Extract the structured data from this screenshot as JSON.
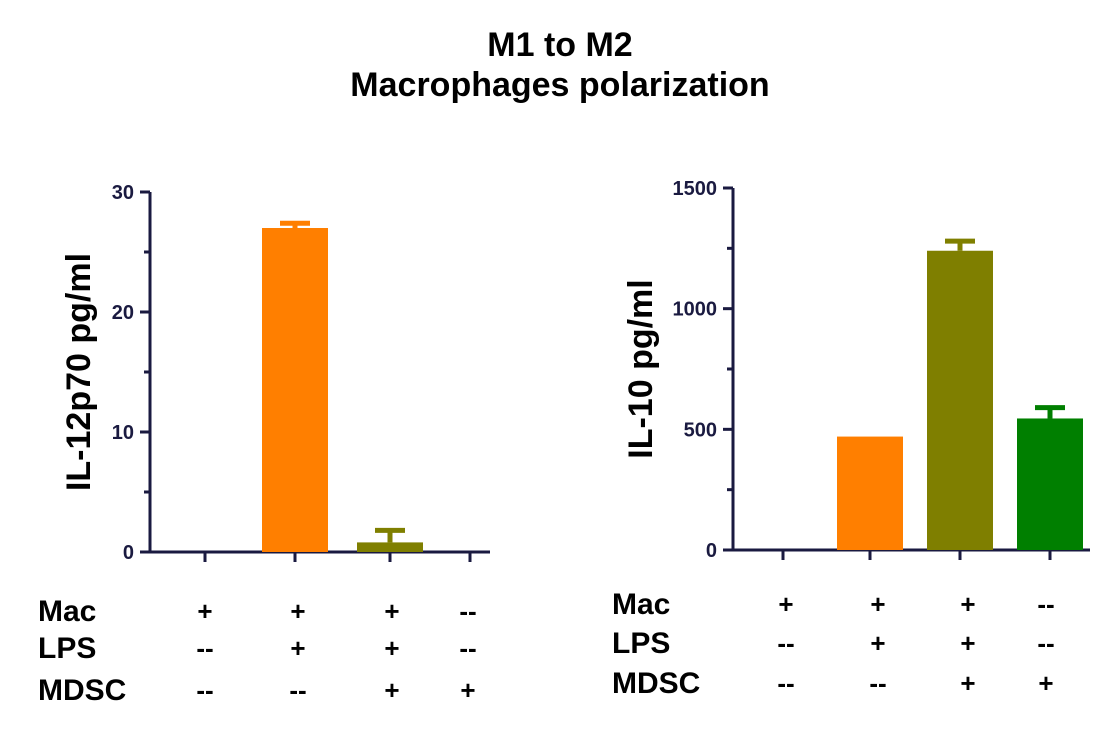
{
  "title": {
    "line1": "M1 to M2",
    "line2": "Macrophages polarization"
  },
  "colors": {
    "axis": "#1a1a40",
    "orange": "#ff7f00",
    "olive": "#7f7f00",
    "green": "#007f00"
  },
  "chart_data": [
    {
      "type": "bar",
      "ylabel": "IL-12p70 pg/ml",
      "ylim": [
        0,
        30
      ],
      "yticks": [
        0,
        10,
        20,
        30
      ],
      "categories": [
        "Mac+ LPS-- MDSC--",
        "Mac+ LPS+ MDSC--",
        "Mac+ LPS+ MDSC+",
        "Mac-- LPS-- MDSC+"
      ],
      "values": [
        0,
        27,
        0.8,
        0
      ],
      "errors": [
        0,
        0.4,
        1.0,
        0
      ],
      "bar_colors": [
        "#ff7f00",
        "#ff7f00",
        "#7f7f00",
        "#007f00"
      ],
      "conditions": {
        "labels": [
          "Mac",
          "LPS",
          "MDSC"
        ],
        "rows": [
          [
            "+",
            "+",
            "+",
            "--"
          ],
          [
            "--",
            "+",
            "+",
            "--"
          ],
          [
            "--",
            "--",
            "+",
            "+"
          ]
        ]
      }
    },
    {
      "type": "bar",
      "ylabel": "IL-10 pg/ml",
      "ylim": [
        0,
        1500
      ],
      "yticks": [
        0,
        500,
        1000,
        1500
      ],
      "categories": [
        "Mac+ LPS-- MDSC--",
        "Mac+ LPS+ MDSC--",
        "Mac+ LPS+ MDSC+",
        "Mac-- LPS-- MDSC+"
      ],
      "values": [
        0,
        470,
        1240,
        545
      ],
      "errors": [
        0,
        0,
        40,
        45
      ],
      "bar_colors": [
        "#ff7f00",
        "#ff7f00",
        "#7f7f00",
        "#007f00"
      ],
      "conditions": {
        "labels": [
          "Mac",
          "LPS",
          "MDSC"
        ],
        "rows": [
          [
            "+",
            "+",
            "+",
            "--"
          ],
          [
            "--",
            "+",
            "+",
            "--"
          ],
          [
            "--",
            "--",
            "+",
            "+"
          ]
        ]
      }
    }
  ]
}
